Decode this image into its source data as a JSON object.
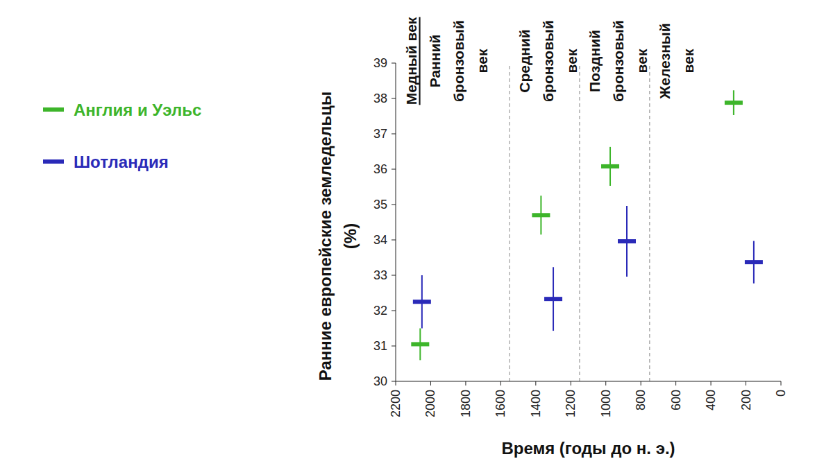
{
  "chart_data": {
    "type": "scatter",
    "x_label": "Время (годы до н. э.)",
    "y_label": [
      "Ранние европейские земледельцы",
      "(%)"
    ],
    "xlim": [
      2200,
      0
    ],
    "xticks": [
      2200,
      2000,
      1800,
      1600,
      1400,
      1200,
      1000,
      800,
      600,
      400,
      200,
      0
    ],
    "ylim": [
      30,
      39
    ],
    "yticks": [
      30,
      31,
      32,
      33,
      34,
      35,
      36,
      37,
      38,
      39
    ],
    "grid": false,
    "legend": "left",
    "marker": "dash",
    "periods": [
      {
        "upper": "Медный век",
        "lines": [
          "Ранний",
          "бронзовый",
          "век"
        ],
        "start": 2200,
        "end": 1550
      },
      {
        "lines": [
          "Средний",
          "бронзовый",
          "век"
        ],
        "start": 1550,
        "end": 1150
      },
      {
        "lines": [
          "Поздний",
          "бронзовый",
          "век"
        ],
        "start": 1150,
        "end": 750
      },
      {
        "lines": [
          "Железный",
          "век"
        ],
        "start": 750,
        "end": 0
      }
    ],
    "series": [
      {
        "name": "Англия и Уэльс",
        "color": "#3db52a",
        "x": [
          2060,
          1370,
          975,
          270
        ],
        "values": [
          31.05,
          34.7,
          36.08,
          37.88
        ],
        "error": [
          0.45,
          0.55,
          0.55,
          0.35
        ]
      },
      {
        "name": "Шотландия",
        "color": "#2a2ab8",
        "x": [
          2050,
          1300,
          880,
          155
        ],
        "values": [
          32.25,
          32.33,
          33.96,
          33.37
        ],
        "error": [
          0.75,
          0.9,
          1.0,
          0.6
        ]
      }
    ]
  }
}
